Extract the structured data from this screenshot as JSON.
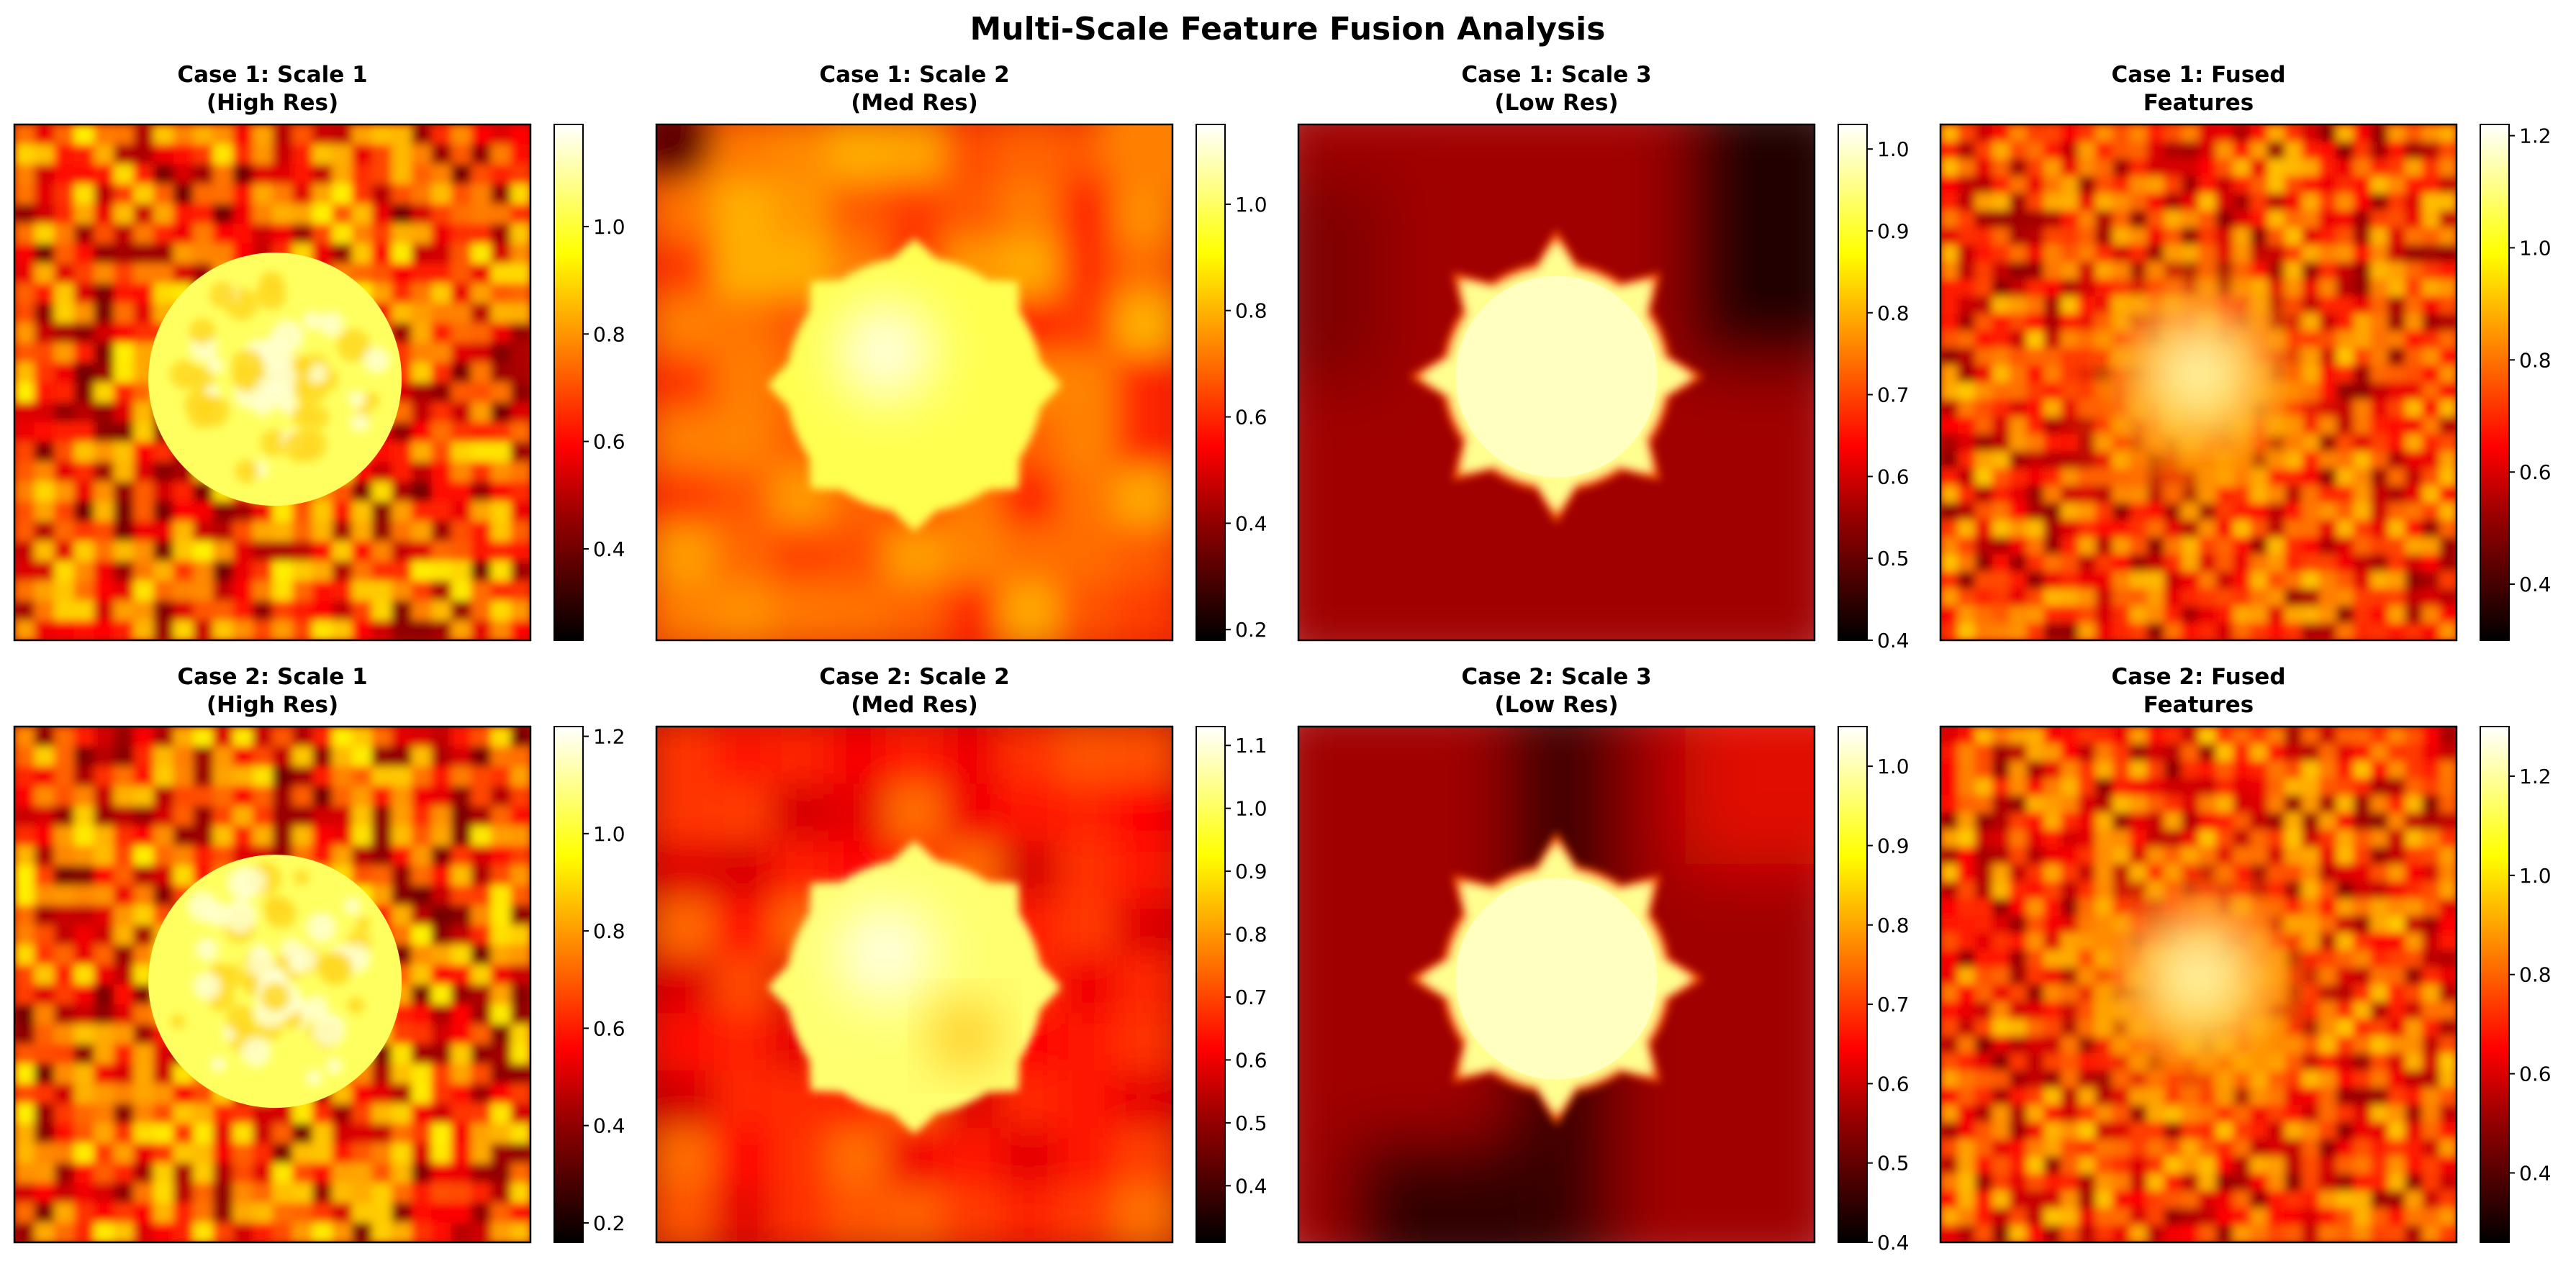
{
  "figure": {
    "title": "Multi-Scale Feature Fusion Analysis"
  },
  "colormap": {
    "name": "hot",
    "stops": [
      "#000000",
      "#500000",
      "#a00000",
      "#ff0000",
      "#ff5500",
      "#ffaa00",
      "#ffff00",
      "#ffff80",
      "#ffffff"
    ]
  },
  "chart_data": [
    {
      "type": "heatmap",
      "title_line1": "Case 1: Scale 1",
      "title_line2": "(High Res)",
      "colorbar": {
        "vmin": 0.23,
        "vmax": 1.19,
        "ticks": [
          0.4,
          0.6,
          0.8,
          1.0
        ]
      }
    },
    {
      "type": "heatmap",
      "title_line1": "Case 1: Scale 2",
      "title_line2": "(Med Res)",
      "colorbar": {
        "vmin": 0.18,
        "vmax": 1.15,
        "ticks": [
          0.2,
          0.4,
          0.6,
          0.8,
          1.0
        ]
      }
    },
    {
      "type": "heatmap",
      "title_line1": "Case 1: Scale 3",
      "title_line2": "(Low Res)",
      "colorbar": {
        "vmin": 0.4,
        "vmax": 1.03,
        "ticks": [
          0.4,
          0.5,
          0.6,
          0.7,
          0.8,
          0.9,
          1.0
        ]
      }
    },
    {
      "type": "heatmap",
      "title_line1": "Case 1: Fused",
      "title_line2": "Features",
      "colorbar": {
        "vmin": 0.3,
        "vmax": 1.22,
        "ticks": [
          0.4,
          0.6,
          0.8,
          1.0,
          1.2
        ]
      }
    },
    {
      "type": "heatmap",
      "title_line1": "Case 2: Scale 1",
      "title_line2": "(High Res)",
      "colorbar": {
        "vmin": 0.16,
        "vmax": 1.22,
        "ticks": [
          0.2,
          0.4,
          0.6,
          0.8,
          1.0,
          1.2
        ]
      }
    },
    {
      "type": "heatmap",
      "title_line1": "Case 2: Scale 2",
      "title_line2": "(Med Res)",
      "colorbar": {
        "vmin": 0.31,
        "vmax": 1.13,
        "ticks": [
          0.4,
          0.5,
          0.6,
          0.7,
          0.8,
          0.9,
          1.0,
          1.1
        ]
      }
    },
    {
      "type": "heatmap",
      "title_line1": "Case 2: Scale 3",
      "title_line2": "(Low Res)",
      "colorbar": {
        "vmin": 0.4,
        "vmax": 1.05,
        "ticks": [
          0.4,
          0.5,
          0.6,
          0.7,
          0.8,
          0.9,
          1.0
        ]
      }
    },
    {
      "type": "heatmap",
      "title_line1": "Case 2: Fused",
      "title_line2": "Features",
      "colorbar": {
        "vmin": 0.26,
        "vmax": 1.3,
        "ticks": [
          0.4,
          0.6,
          0.8,
          1.0,
          1.2
        ]
      }
    }
  ]
}
